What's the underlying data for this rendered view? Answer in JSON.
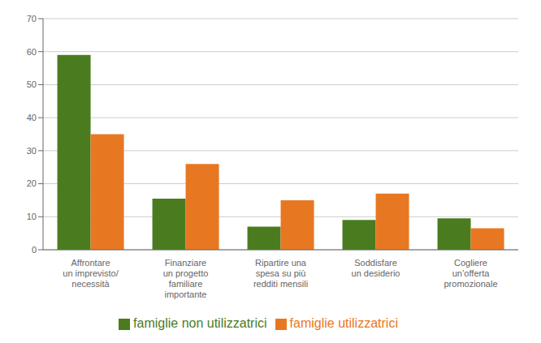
{
  "chart_data": {
    "type": "bar",
    "categories": [
      "Affrontare\nun imprevisto/\nnecessità",
      "Finanziare\nun progetto\nfamiliare\nimportante",
      "Ripartire una\nspesa su più\nredditi mensili",
      "Soddisfare\nun desiderio",
      "Cogliere\nun’offerta\npromozionale"
    ],
    "series": [
      {
        "name": "famiglie non utilizzatrici",
        "color": "#4a7c1f",
        "values": [
          59,
          15.5,
          7,
          9,
          9.5
        ]
      },
      {
        "name": "famiglie utilizzatrici",
        "color": "#e87722",
        "values": [
          35,
          26,
          15,
          17,
          6.5
        ]
      }
    ],
    "ylim": [
      0,
      70
    ],
    "yticks": [
      0,
      10,
      20,
      30,
      40,
      50,
      60,
      70
    ],
    "grid": true,
    "legend": "bottom"
  }
}
